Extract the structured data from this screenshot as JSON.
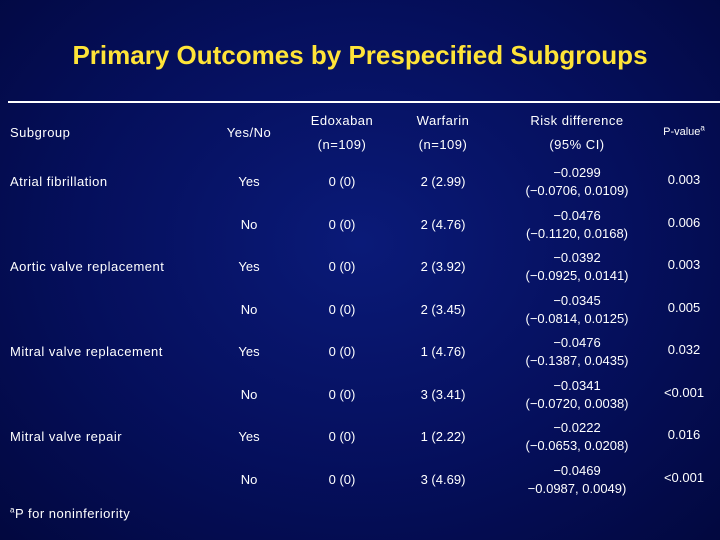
{
  "title": "Primary Outcomes by Prespecified Subgroups",
  "header": {
    "subgroup": "Subgroup",
    "yesno": "Yes/No",
    "edoxaban": "Edoxaban",
    "edoxaban_n": "(n=109)",
    "warfarin": "Warfarin",
    "warfarin_n": "(n=109)",
    "risk": "Risk difference",
    "risk_ci": "(95% CI)",
    "pvalue": "P-value",
    "pvalue_sup": "a"
  },
  "rows": [
    {
      "subgroup": "Atrial fibrillation",
      "yesno": "Yes",
      "edoxaban": "0 (0)",
      "warfarin": "2 (2.99)",
      "rd": "−0.0299",
      "ci": "(−0.0706, 0.0109)",
      "p": "0.003"
    },
    {
      "subgroup": "",
      "yesno": "No",
      "edoxaban": "0 (0)",
      "warfarin": "2 (4.76)",
      "rd": "−0.0476",
      "ci": "(−0.1120, 0.0168)",
      "p": "0.006"
    },
    {
      "subgroup": "Aortic valve replacement",
      "yesno": "Yes",
      "edoxaban": "0 (0)",
      "warfarin": "2 (3.92)",
      "rd": "−0.0392",
      "ci": "(−0.0925, 0.0141)",
      "p": "0.003"
    },
    {
      "subgroup": "",
      "yesno": "No",
      "edoxaban": "0 (0)",
      "warfarin": "2 (3.45)",
      "rd": "−0.0345",
      "ci": "(−0.0814, 0.0125)",
      "p": "0.005"
    },
    {
      "subgroup": "Mitral valve replacement",
      "yesno": "Yes",
      "edoxaban": "0 (0)",
      "warfarin": "1 (4.76)",
      "rd": "−0.0476",
      "ci": "(−0.1387, 0.0435)",
      "p": "0.032"
    },
    {
      "subgroup": "",
      "yesno": "No",
      "edoxaban": "0 (0)",
      "warfarin": "3 (3.41)",
      "rd": "−0.0341",
      "ci": "(−0.0720, 0.0038)",
      "p": "<0.001"
    },
    {
      "subgroup": "Mitral valve repair",
      "yesno": "Yes",
      "edoxaban": "0 (0)",
      "warfarin": "1 (2.22)",
      "rd": "−0.0222",
      "ci": "(−0.0653, 0.0208)",
      "p": "0.016"
    },
    {
      "subgroup": "",
      "yesno": "No",
      "edoxaban": "0 (0)",
      "warfarin": "3 (4.69)",
      "rd": "−0.0469",
      "ci": "−0.0987, 0.0049)",
      "p": "<0.001"
    }
  ],
  "footnote": {
    "sup": "a",
    "text": "P for noninferiority"
  }
}
